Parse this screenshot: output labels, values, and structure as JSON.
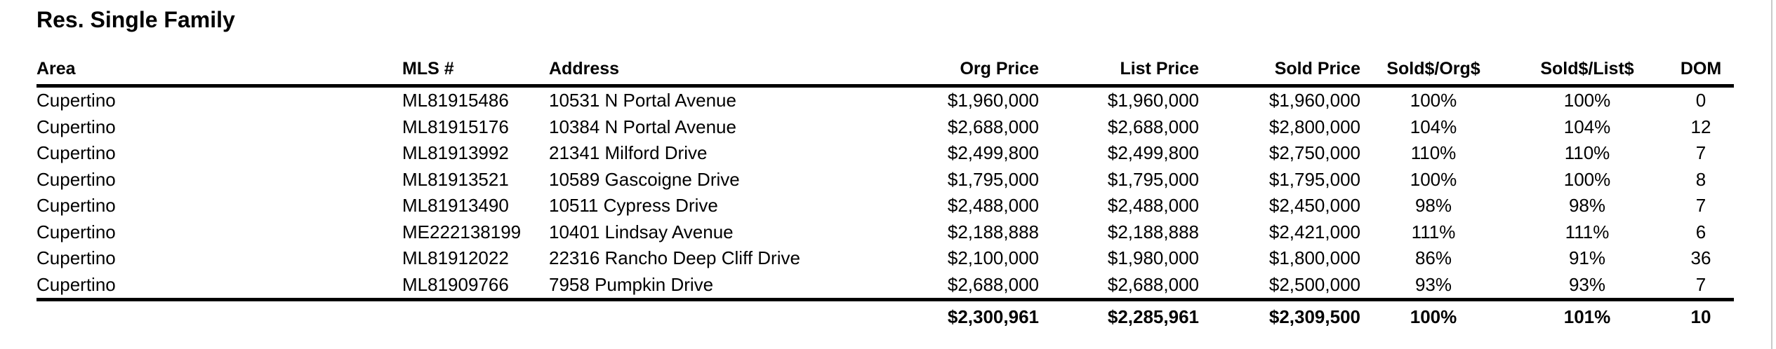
{
  "title": "Res. Single Family",
  "table": {
    "columns": [
      {
        "label": "Area",
        "align": "left"
      },
      {
        "label": "MLS #",
        "align": "left"
      },
      {
        "label": "Address",
        "align": "left"
      },
      {
        "label": "Org Price",
        "align": "right"
      },
      {
        "label": "List Price",
        "align": "right"
      },
      {
        "label": "Sold Price",
        "align": "right"
      },
      {
        "label": "Sold$/Org$",
        "align": "center"
      },
      {
        "label": "Sold$/List$",
        "align": "center"
      },
      {
        "label": "DOM",
        "align": "center"
      }
    ],
    "rows": [
      [
        "Cupertino",
        "ML81915486",
        "10531 N Portal Avenue",
        "$1,960,000",
        "$1,960,000",
        "$1,960,000",
        "100%",
        "100%",
        "0"
      ],
      [
        "Cupertino",
        "ML81915176",
        "10384 N Portal Avenue",
        "$2,688,000",
        "$2,688,000",
        "$2,800,000",
        "104%",
        "104%",
        "12"
      ],
      [
        "Cupertino",
        "ML81913992",
        "21341 Milford Drive",
        "$2,499,800",
        "$2,499,800",
        "$2,750,000",
        "110%",
        "110%",
        "7"
      ],
      [
        "Cupertino",
        "ML81913521",
        "10589 Gascoigne Drive",
        "$1,795,000",
        "$1,795,000",
        "$1,795,000",
        "100%",
        "100%",
        "8"
      ],
      [
        "Cupertino",
        "ML81913490",
        "10511 Cypress Drive",
        "$2,488,000",
        "$2,488,000",
        "$2,450,000",
        "98%",
        "98%",
        "7"
      ],
      [
        "Cupertino",
        "ME222138199",
        "10401 Lindsay Avenue",
        "$2,188,888",
        "$2,188,888",
        "$2,421,000",
        "111%",
        "111%",
        "6"
      ],
      [
        "Cupertino",
        "ML81912022",
        "22316 Rancho Deep Cliff Drive",
        "$2,100,000",
        "$1,980,000",
        "$1,800,000",
        "86%",
        "91%",
        "36"
      ],
      [
        "Cupertino",
        "ML81909766",
        "7958 Pumpkin Drive",
        "$2,688,000",
        "$2,688,000",
        "$2,500,000",
        "93%",
        "93%",
        "7"
      ]
    ],
    "totals": [
      "",
      "",
      "",
      "$2,300,961",
      "$2,285,961",
      "$2,309,500",
      "100%",
      "101%",
      "10"
    ]
  }
}
